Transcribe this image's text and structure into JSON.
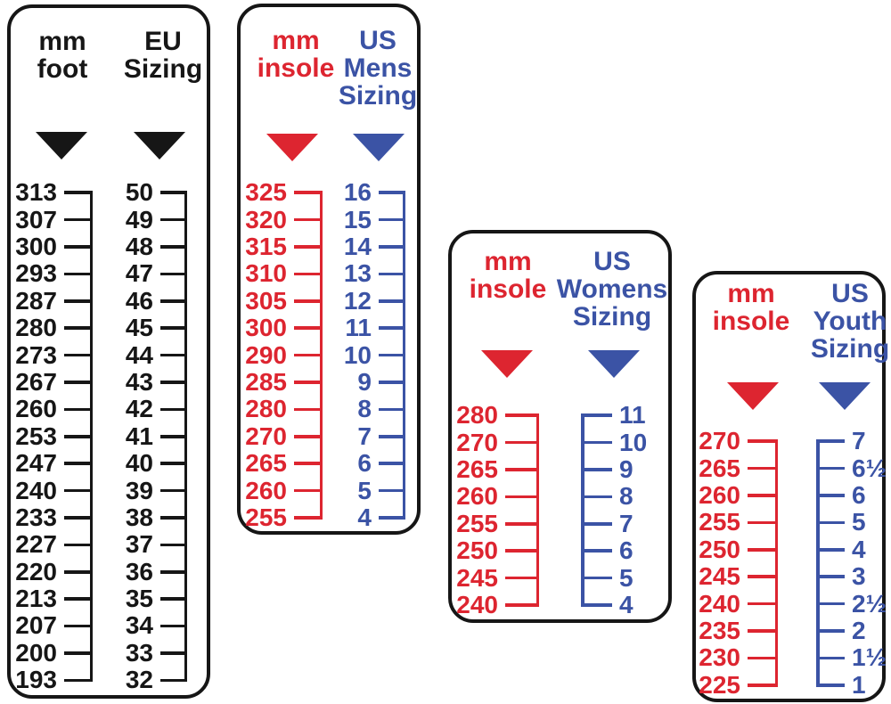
{
  "colors": {
    "black": "#161616",
    "red": "#dd2530",
    "blue": "#3b53a5"
  },
  "panels": [
    {
      "name": "mm-foot-to-eu-sizing",
      "col1": {
        "header": "mm\nfoot",
        "color": "black"
      },
      "col2": {
        "header": "EU\nSizing",
        "color": "black"
      },
      "rows": [
        [
          "313",
          "50"
        ],
        [
          "307",
          "49"
        ],
        [
          "300",
          "48"
        ],
        [
          "293",
          "47"
        ],
        [
          "287",
          "46"
        ],
        [
          "280",
          "45"
        ],
        [
          "273",
          "44"
        ],
        [
          "267",
          "43"
        ],
        [
          "260",
          "42"
        ],
        [
          "253",
          "41"
        ],
        [
          "247",
          "40"
        ],
        [
          "240",
          "39"
        ],
        [
          "233",
          "38"
        ],
        [
          "227",
          "37"
        ],
        [
          "220",
          "36"
        ],
        [
          "213",
          "35"
        ],
        [
          "207",
          "34"
        ],
        [
          "200",
          "33"
        ],
        [
          "193",
          "32"
        ]
      ]
    },
    {
      "name": "mm-insole-to-us-mens-sizing",
      "col1": {
        "header": "mm\ninsole",
        "color": "red"
      },
      "col2": {
        "header": "US\nMens\nSizing",
        "color": "blue"
      },
      "rows": [
        [
          "325",
          "16"
        ],
        [
          "320",
          "15"
        ],
        [
          "315",
          "14"
        ],
        [
          "310",
          "13"
        ],
        [
          "305",
          "12"
        ],
        [
          "300",
          "11"
        ],
        [
          "290",
          "10"
        ],
        [
          "285",
          "9"
        ],
        [
          "280",
          "8"
        ],
        [
          "270",
          "7"
        ],
        [
          "265",
          "6"
        ],
        [
          "260",
          "5"
        ],
        [
          "255",
          "4"
        ]
      ]
    },
    {
      "name": "mm-insole-to-us-womens-sizing",
      "col1": {
        "header": "mm\ninsole",
        "color": "red"
      },
      "col2": {
        "header": "US\nWomens\nSizing",
        "color": "blue"
      },
      "rows": [
        [
          "280",
          "11"
        ],
        [
          "270",
          "10"
        ],
        [
          "265",
          "9"
        ],
        [
          "260",
          "8"
        ],
        [
          "255",
          "7"
        ],
        [
          "250",
          "6"
        ],
        [
          "245",
          "5"
        ],
        [
          "240",
          "4"
        ]
      ]
    },
    {
      "name": "mm-insole-to-us-youth-sizing",
      "col1": {
        "header": "mm\ninsole",
        "color": "red"
      },
      "col2": {
        "header": "US\nYouth\nSizing",
        "color": "blue"
      },
      "rows": [
        [
          "270",
          "7"
        ],
        [
          "265",
          "6½"
        ],
        [
          "260",
          "6"
        ],
        [
          "255",
          "5"
        ],
        [
          "250",
          "4"
        ],
        [
          "245",
          "3"
        ],
        [
          "240",
          "2½"
        ],
        [
          "235",
          "2"
        ],
        [
          "230",
          "1½"
        ],
        [
          "225",
          "1"
        ]
      ]
    }
  ],
  "chart_data": [
    {
      "type": "table",
      "title": "mm foot to EU Sizing",
      "columns": [
        "mm foot",
        "EU Sizing"
      ],
      "rows": [
        [
          313,
          50
        ],
        [
          307,
          49
        ],
        [
          300,
          48
        ],
        [
          293,
          47
        ],
        [
          287,
          46
        ],
        [
          280,
          45
        ],
        [
          273,
          44
        ],
        [
          267,
          43
        ],
        [
          260,
          42
        ],
        [
          253,
          41
        ],
        [
          247,
          40
        ],
        [
          240,
          39
        ],
        [
          233,
          38
        ],
        [
          227,
          37
        ],
        [
          220,
          36
        ],
        [
          213,
          35
        ],
        [
          207,
          34
        ],
        [
          200,
          33
        ],
        [
          193,
          32
        ]
      ]
    },
    {
      "type": "table",
      "title": "mm insole to US Mens Sizing",
      "columns": [
        "mm insole",
        "US Mens Sizing"
      ],
      "rows": [
        [
          325,
          16
        ],
        [
          320,
          15
        ],
        [
          315,
          14
        ],
        [
          310,
          13
        ],
        [
          305,
          12
        ],
        [
          300,
          11
        ],
        [
          290,
          10
        ],
        [
          285,
          9
        ],
        [
          280,
          8
        ],
        [
          270,
          7
        ],
        [
          265,
          6
        ],
        [
          260,
          5
        ],
        [
          255,
          4
        ]
      ]
    },
    {
      "type": "table",
      "title": "mm insole to US Womens Sizing",
      "columns": [
        "mm insole",
        "US Womens Sizing"
      ],
      "rows": [
        [
          280,
          11
        ],
        [
          270,
          10
        ],
        [
          265,
          9
        ],
        [
          260,
          8
        ],
        [
          255,
          7
        ],
        [
          250,
          6
        ],
        [
          245,
          5
        ],
        [
          240,
          4
        ]
      ]
    },
    {
      "type": "table",
      "title": "mm insole to US Youth Sizing",
      "columns": [
        "mm insole",
        "US Youth Sizing"
      ],
      "rows": [
        [
          270,
          "7"
        ],
        [
          265,
          "6½"
        ],
        [
          260,
          "6"
        ],
        [
          255,
          "5"
        ],
        [
          250,
          "4"
        ],
        [
          245,
          "3"
        ],
        [
          240,
          "2½"
        ],
        [
          235,
          "2"
        ],
        [
          230,
          "1½"
        ],
        [
          225,
          "1"
        ]
      ]
    }
  ]
}
